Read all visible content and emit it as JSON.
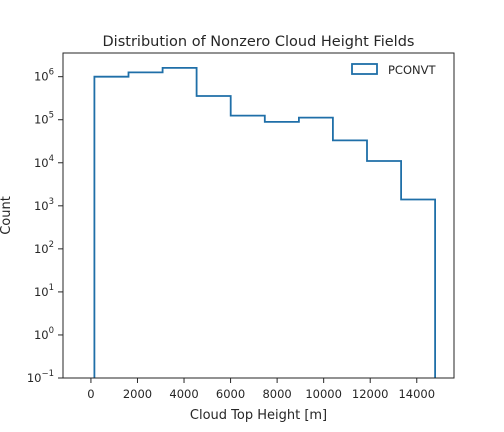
{
  "chart_data": {
    "type": "histogram",
    "title": "Distribution of Nonzero Cloud Height Fields",
    "xlabel": "Cloud Top Height [m]",
    "ylabel": "Count",
    "yscale": "log",
    "xlim": [
      -1200,
      15600
    ],
    "ylim_log10": [
      -1,
      6.55
    ],
    "x_ticks": [
      0,
      2000,
      4000,
      6000,
      8000,
      10000,
      12000,
      14000
    ],
    "y_ticks_log10": [
      -1,
      0,
      1,
      2,
      3,
      4,
      5,
      6
    ],
    "y_tick_mantissa": "10",
    "grid": false,
    "legend_position": "top-right",
    "histtype": "step",
    "series": [
      {
        "name": "PCONVT",
        "color": "#1f6fa8",
        "bin_edges": [
          150,
          1614,
          3078,
          4542,
          6006,
          7470,
          8934,
          10398,
          11862,
          13326,
          14790
        ],
        "counts": [
          1000000,
          1260000,
          1600000,
          355000,
          125000,
          89000,
          112000,
          33000,
          11000,
          1400
        ]
      }
    ]
  }
}
